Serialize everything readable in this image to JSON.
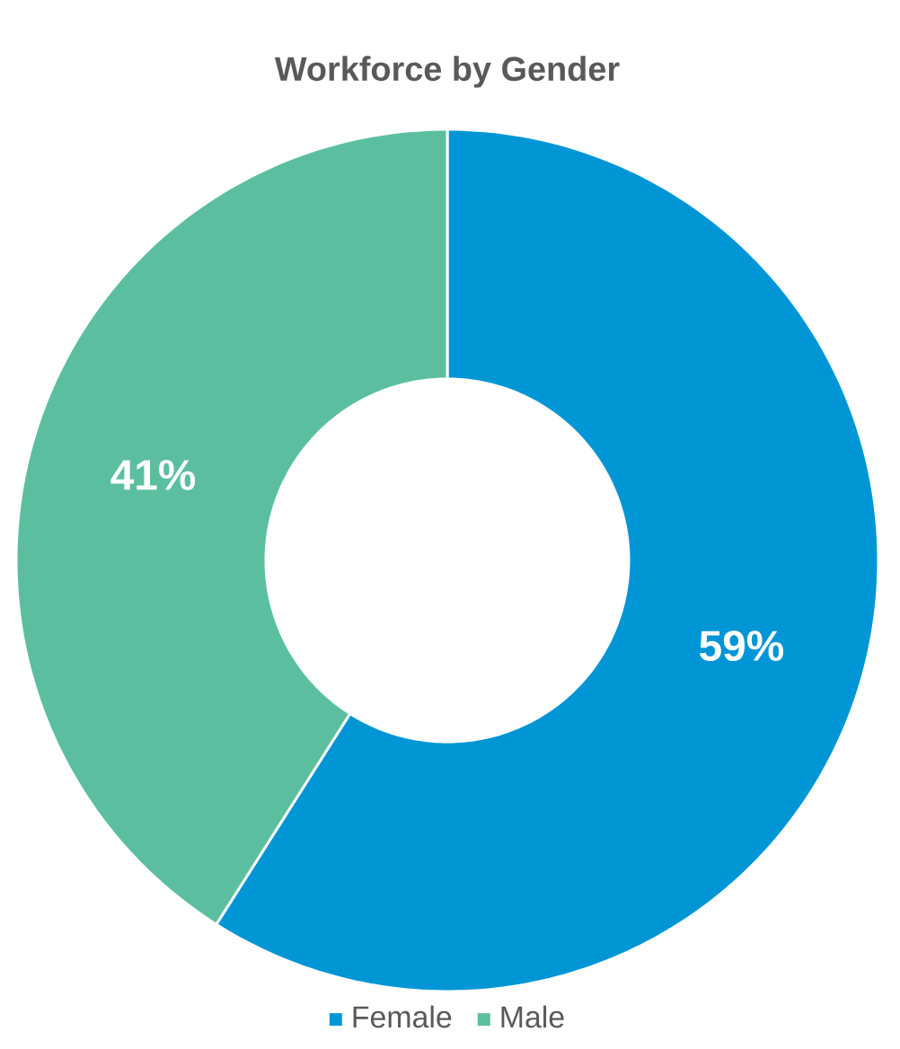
{
  "chart_data": {
    "type": "donut",
    "title": "Workforce by Gender",
    "categories": [
      "Female",
      "Male"
    ],
    "values": [
      59,
      41
    ],
    "colors": [
      "#0096d6",
      "#5bbf9f"
    ],
    "value_labels": [
      "59%",
      "41%"
    ],
    "legend": "bottom"
  }
}
